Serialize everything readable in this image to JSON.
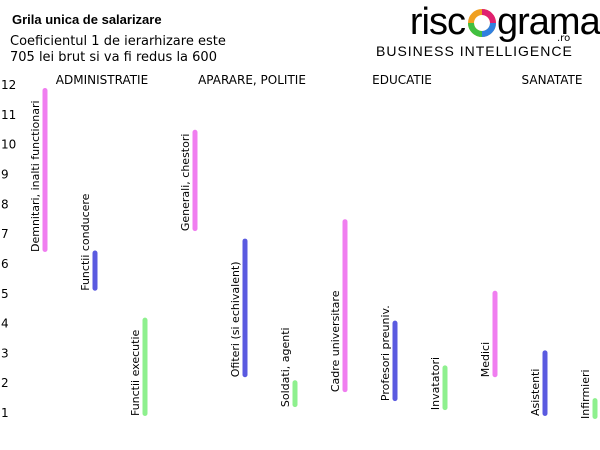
{
  "chart_data": {
    "type": "range_bar",
    "title": "Grila unica de salarizare",
    "subtitle": [
      "Coeficientul 1 de ierarhizare este",
      "705 lei brut si va fi redus la 600"
    ],
    "logo": {
      "left": "risc",
      "right": "grama",
      "suffix": ".ro",
      "tagline": "BUSINESS INTELLIGENCE"
    },
    "groups": [
      "ADMINISTRATIE",
      "APARARE, POLITIE",
      "EDUCATIE",
      "SANATATE"
    ],
    "categories": [
      "Demnitari, inalti functionari",
      "Functii conducere",
      "Functii executie",
      "Generali, chestori",
      "Ofiteri (si echivalent)",
      "Soldati, agenti",
      "Cadre universitare",
      "Profesori preuniv.",
      "Invatatori",
      "Medici",
      "Asistenti",
      "Infirmieri"
    ],
    "low": [
      6.4,
      5.1,
      0.9,
      7.1,
      2.2,
      1.2,
      1.7,
      1.4,
      1.1,
      2.2,
      0.9,
      0.8
    ],
    "high": [
      11.9,
      6.45,
      4.2,
      10.5,
      6.85,
      2.1,
      7.5,
      4.1,
      2.6,
      5.1,
      3.1,
      1.5
    ],
    "colors": [
      "#f07ef0",
      "#5a5ae0",
      "#8ef08e",
      "#f07ef0",
      "#5a5ae0",
      "#8ef08e",
      "#f07ef0",
      "#5a5ae0",
      "#8ef08e",
      "#f07ef0",
      "#5a5ae0",
      "#8ef08e"
    ],
    "ylim": [
      0.7,
      12.1
    ],
    "yticks": [
      1,
      2,
      3,
      4,
      5,
      6,
      7,
      8,
      9,
      10,
      11,
      12
    ]
  }
}
